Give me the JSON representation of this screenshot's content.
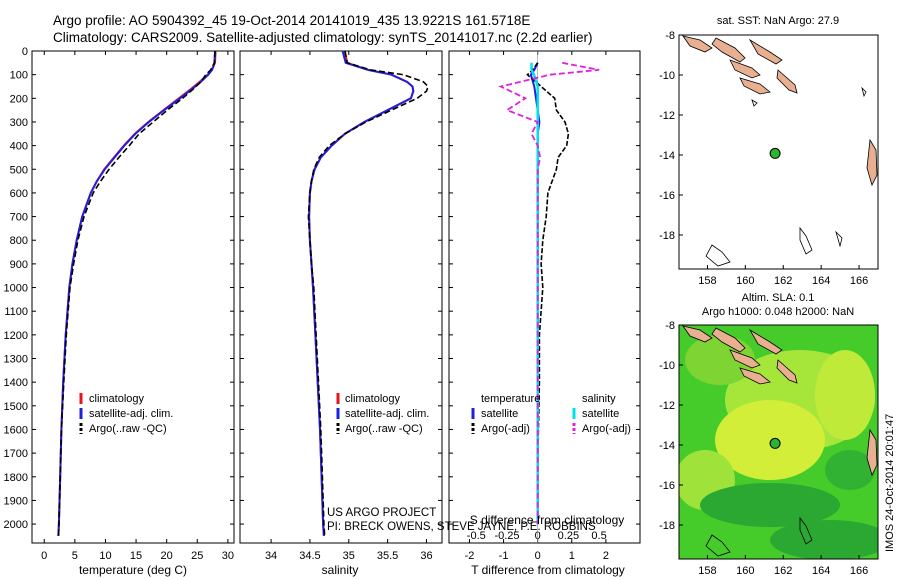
{
  "header": {
    "line1": "Argo profile: AO 5904392_45 19-Oct-2014 20141019_435 13.9221S 161.5718E",
    "line2": "Climatology: CARS2009. Satellite-adjusted climatology: synTS_20141017.nc (2.2d earlier)"
  },
  "colors": {
    "climatology": "#e8131b",
    "satellite": "#1f1fe0",
    "argo": "#000000",
    "sal_sat": "#00e0f0",
    "sal_argo": "#e020e0",
    "land": "#e8b090"
  },
  "credits": {
    "project": "US ARGO PROJECT",
    "pi": "PI: BRECK OWENS, STEVE JAYNE, P.E. ROBBINS"
  },
  "chart_data": [
    {
      "type": "line",
      "id": "temperature",
      "xlabel": "temperature (deg C)",
      "ylabel": "depth",
      "xlim": [
        -2,
        31
      ],
      "ylim": [
        2080,
        0
      ],
      "xticks": [
        "0",
        "5",
        "10",
        "15",
        "20",
        "25",
        "30"
      ],
      "yticks": [
        "0",
        "100",
        "200",
        "300",
        "400",
        "500",
        "600",
        "700",
        "800",
        "900",
        "1000",
        "1100",
        "1200",
        "1300",
        "1400",
        "1500",
        "1600",
        "1700",
        "1800",
        "1900",
        "2000"
      ],
      "legend": [
        "climatology",
        "satellite-adj. clim.",
        "Argo(..raw -QC)"
      ],
      "depth": [
        0,
        50,
        80,
        100,
        130,
        160,
        200,
        250,
        300,
        350,
        400,
        450,
        500,
        550,
        600,
        700,
        800,
        900,
        1000,
        1200,
        1400,
        1600,
        1800,
        2000,
        2050
      ],
      "series": [
        {
          "name": "climatology",
          "values": [
            28.0,
            27.9,
            27.4,
            26.7,
            25.4,
            24.0,
            22.0,
            19.5,
            17.0,
            14.8,
            13.0,
            11.4,
            9.8,
            8.6,
            7.6,
            6.2,
            5.3,
            4.6,
            4.1,
            3.5,
            3.1,
            2.8,
            2.6,
            2.4,
            2.3
          ]
        },
        {
          "name": "satellite-adj. clim.",
          "values": [
            27.9,
            27.8,
            27.4,
            26.8,
            25.6,
            24.2,
            22.2,
            19.6,
            17.1,
            14.9,
            13.1,
            11.5,
            9.9,
            8.6,
            7.6,
            6.2,
            5.3,
            4.6,
            4.1,
            3.5,
            3.1,
            2.8,
            2.6,
            2.4,
            2.3
          ]
        },
        {
          "name": "Argo(..raw -QC)",
          "values": [
            27.9,
            27.8,
            27.2,
            26.4,
            25.6,
            24.4,
            22.6,
            20.1,
            17.8,
            15.5,
            13.9,
            12.2,
            10.6,
            9.2,
            8.0,
            6.5,
            5.5,
            4.8,
            4.2,
            3.6,
            3.2,
            2.8,
            2.6,
            2.4,
            2.35
          ]
        }
      ]
    },
    {
      "type": "line",
      "id": "salinity",
      "xlabel": "salinity",
      "ylabel": "depth",
      "xlim": [
        33.6,
        36.2
      ],
      "ylim": [
        2080,
        0
      ],
      "xticks": [
        "34",
        "34.5",
        "35",
        "35.5",
        "36"
      ],
      "legend": [
        "climatology",
        "satellite-adj. clim.",
        "Argo(..raw -QC)"
      ],
      "depth": [
        0,
        50,
        80,
        100,
        130,
        150,
        170,
        200,
        250,
        300,
        350,
        400,
        450,
        500,
        550,
        600,
        700,
        800,
        900,
        1000,
        1200,
        1400,
        1600,
        1800,
        2000,
        2050
      ],
      "series": [
        {
          "name": "climatology",
          "values": [
            34.95,
            34.98,
            35.25,
            35.55,
            35.75,
            35.82,
            35.83,
            35.8,
            35.5,
            35.2,
            34.95,
            34.78,
            34.64,
            34.56,
            34.52,
            34.5,
            34.49,
            34.5,
            34.52,
            34.54,
            34.57,
            34.6,
            34.63,
            34.65,
            34.67,
            34.68
          ]
        },
        {
          "name": "satellite-adj. clim.",
          "values": [
            34.92,
            34.96,
            35.25,
            35.55,
            35.75,
            35.82,
            35.83,
            35.8,
            35.5,
            35.2,
            34.95,
            34.78,
            34.64,
            34.56,
            34.52,
            34.5,
            34.49,
            34.5,
            34.52,
            34.54,
            34.57,
            34.6,
            34.63,
            34.65,
            34.67,
            34.68
          ]
        },
        {
          "name": "Argo(..raw -QC)",
          "values": [
            34.95,
            34.98,
            35.28,
            35.7,
            35.96,
            36.02,
            36.0,
            35.88,
            35.55,
            35.22,
            34.95,
            34.75,
            34.62,
            34.55,
            34.52,
            34.5,
            34.48,
            34.5,
            34.52,
            34.55,
            34.58,
            34.61,
            34.64,
            34.66,
            34.68,
            34.69
          ]
        }
      ]
    },
    {
      "type": "line",
      "id": "difference",
      "xlabel": "T difference from climatology",
      "xlabel2": "S difference from climatology",
      "xlim": [
        -2.6,
        3.0
      ],
      "ylim": [
        2080,
        0
      ],
      "xticks": [
        "-2",
        "-1",
        "0",
        "1",
        "2"
      ],
      "xticks2": [
        "-0.5",
        "-0.25",
        "0",
        "0.25",
        "0.5"
      ],
      "legend": {
        "temperature": "temperature",
        "salinity": "salinity",
        "satellite": "satellite",
        "argo": "Argo(-adj)"
      },
      "depth": [
        50,
        80,
        100,
        150,
        200,
        250,
        300,
        350,
        400,
        450,
        500,
        600,
        700,
        800,
        900,
        1000,
        1100,
        1200,
        1400,
        1600,
        1800,
        2000
      ],
      "series": [
        {
          "name": "temperature satellite",
          "values": [
            0.0,
            -0.1,
            -0.2,
            -0.1,
            -0.05,
            0.0,
            0.05,
            0.0,
            0.0,
            0.0,
            0.0,
            0.0,
            0.0,
            0.0,
            0.0,
            0.0,
            0.0,
            0.0,
            0.0,
            0.0,
            0.0,
            0.0
          ]
        },
        {
          "name": "temperature Argo(-adj)",
          "values": [
            0.0,
            -0.15,
            -0.3,
            0.1,
            0.5,
            0.55,
            0.8,
            0.9,
            0.85,
            0.6,
            0.55,
            0.3,
            0.25,
            0.15,
            0.1,
            0.15,
            0.1,
            0.05,
            0.05,
            0.02,
            0.0,
            0.0
          ]
        },
        {
          "name": "salinity satellite",
          "values": [
            -0.05,
            -0.05,
            -0.03,
            0.0,
            0.0,
            0.0,
            0.0,
            0.0,
            0.0,
            0.0,
            0.0,
            0.0,
            0.0,
            0.0,
            0.0,
            0.0,
            0.0,
            0.0,
            0.0,
            0.0,
            0.0,
            0.0
          ]
        },
        {
          "name": "salinity Argo(-adj)",
          "values": [
            0.2,
            0.5,
            0.1,
            -0.3,
            -0.1,
            -0.25,
            0.0,
            -0.05,
            0.0,
            0.02,
            0.0,
            0.0,
            0.0,
            0.0,
            0.0,
            0.0,
            0.0,
            0.0,
            0.0,
            0.0,
            0.0,
            0.0
          ]
        }
      ]
    },
    {
      "type": "map",
      "id": "sst-map",
      "title": "sat. SST: NaN Argo: 27.9",
      "xlim": [
        156.5,
        167
      ],
      "ylim": [
        -19.7,
        -8
      ],
      "xticks": [
        "158",
        "160",
        "162",
        "164",
        "166"
      ],
      "yticks": [
        "-8",
        "-10",
        "-12",
        "-14",
        "-16",
        "-18"
      ],
      "float": {
        "lon": 161.57,
        "lat": -13.92
      }
    },
    {
      "type": "heatmap",
      "id": "sla-map",
      "title1": "Altim. SLA: 0.1",
      "title2": "Argo h1000: 0.048 h2000: NaN",
      "xlim": [
        156.5,
        167
      ],
      "ylim": [
        -19.7,
        -8
      ],
      "xticks": [
        "158",
        "160",
        "162",
        "164",
        "166"
      ],
      "yticks": [
        "-8",
        "-10",
        "-12",
        "-14",
        "-16",
        "-18"
      ],
      "float": {
        "lon": 161.57,
        "lat": -13.92
      },
      "side_label": "IMOS 24-Oct-2014 20:01:47"
    }
  ]
}
